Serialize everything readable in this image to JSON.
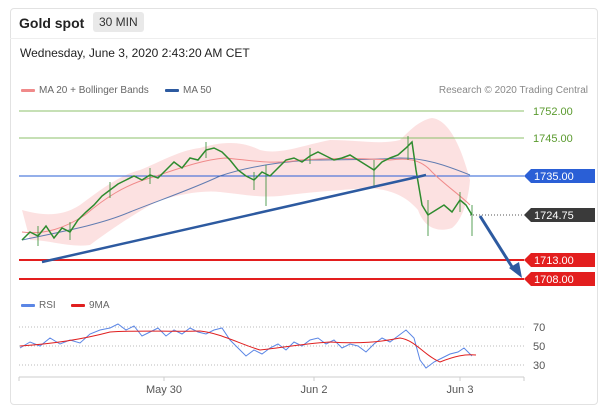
{
  "header": {
    "title": "Gold spot",
    "timeframe": "30 MIN"
  },
  "datetime": "Wednesday, June 3, 2020 2:43:20 AM CET",
  "legend": {
    "ma20_label": "MA 20 + Bollinger Bands",
    "ma50_label": "MA 50",
    "rsi_label": "RSI",
    "ma9_label": "9MA"
  },
  "copyright": "Research © 2020 Trading Central",
  "colors": {
    "ma20": "#f08a8a",
    "ma50": "#2d5aa0",
    "rsi": "#5b86e5",
    "ma9": "#e02020",
    "candle": "#2e8b2e",
    "support": "#e31e1e",
    "resistance": "#8dc06b",
    "pivot": "#2a5fd6",
    "trendline": "#2d5aa0",
    "bands": "#fbd7d7"
  },
  "price_levels": [
    {
      "value": "1752.00",
      "kind": "resistance"
    },
    {
      "value": "1745.00",
      "kind": "resistance"
    },
    {
      "value": "1735.00",
      "kind": "pivot"
    },
    {
      "value": "1724.75",
      "kind": "last"
    },
    {
      "value": "1713.00",
      "kind": "support"
    },
    {
      "value": "1708.00",
      "kind": "support"
    }
  ],
  "x_axis": {
    "labels": [
      "May 30",
      "Jun 2",
      "Jun 3"
    ]
  },
  "rsi_axis": {
    "labels": [
      "70",
      "50",
      "30"
    ]
  }
}
